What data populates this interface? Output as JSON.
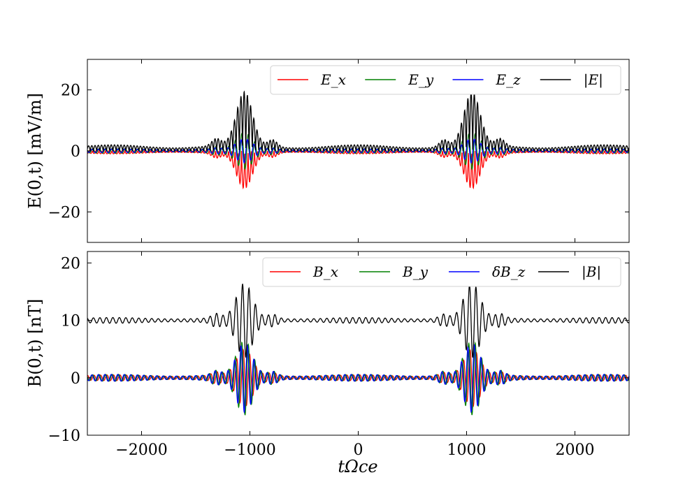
{
  "chart_data": [
    {
      "type": "line",
      "ylabel": "E(0,t) [mV/m]",
      "xlabel": "",
      "xlim": [
        -2500,
        2500
      ],
      "ylim": [
        -30,
        30
      ],
      "xticks": [
        -2000,
        -1000,
        0,
        1000,
        2000
      ],
      "yticks": [
        -20,
        0,
        20
      ],
      "ytick_labels": [
        "−20",
        "0",
        "20"
      ],
      "grid": false,
      "legend_position": "top-right",
      "legend_columns": 4,
      "packet_centers": [
        -1050,
        1050
      ],
      "series": [
        {
          "name": "E_x",
          "color": "#ff0000",
          "peak_amplitude": 19,
          "background_amplitude": 1.5,
          "baseline": 0
        },
        {
          "name": "E_y",
          "color": "#008000",
          "peak_amplitude": 6,
          "background_amplitude": 0.8,
          "baseline": 0
        },
        {
          "name": "E_z",
          "color": "#0000ff",
          "peak_amplitude": 4,
          "background_amplitude": 0.6,
          "baseline": 0
        },
        {
          "name": "|E|",
          "color": "#000000",
          "peak_amplitude": 19.5,
          "background_amplitude": 2,
          "baseline": 0
        }
      ]
    },
    {
      "type": "line",
      "ylabel": "B(0,t) [nT]",
      "xlabel": "tΩce",
      "xlim": [
        -2500,
        2500
      ],
      "ylim": [
        -10,
        22
      ],
      "xticks": [
        -2000,
        -1000,
        0,
        1000,
        2000
      ],
      "xtick_labels": [
        "−2000",
        "−1000",
        "0",
        "1000",
        "2000"
      ],
      "yticks": [
        -10,
        0,
        10,
        20
      ],
      "ytick_labels": [
        "−10",
        "0",
        "10",
        "20"
      ],
      "grid": false,
      "legend_position": "top-right",
      "legend_columns": 4,
      "packet_centers": [
        -1050,
        1050
      ],
      "series": [
        {
          "name": "B_x",
          "color": "#ff0000",
          "peak_amplitude": 5,
          "background_amplitude": 0.5,
          "baseline": 0
        },
        {
          "name": "B_y",
          "color": "#008000",
          "peak_amplitude": 6.5,
          "background_amplitude": 0.6,
          "baseline": 0
        },
        {
          "name": "δB_z",
          "color": "#0000ff",
          "peak_amplitude": 6,
          "background_amplitude": 0.6,
          "baseline": 0
        },
        {
          "name": "|B|",
          "color": "#000000",
          "peak_amplitude": 6.5,
          "background_amplitude": 0.5,
          "baseline": 10
        }
      ]
    }
  ]
}
